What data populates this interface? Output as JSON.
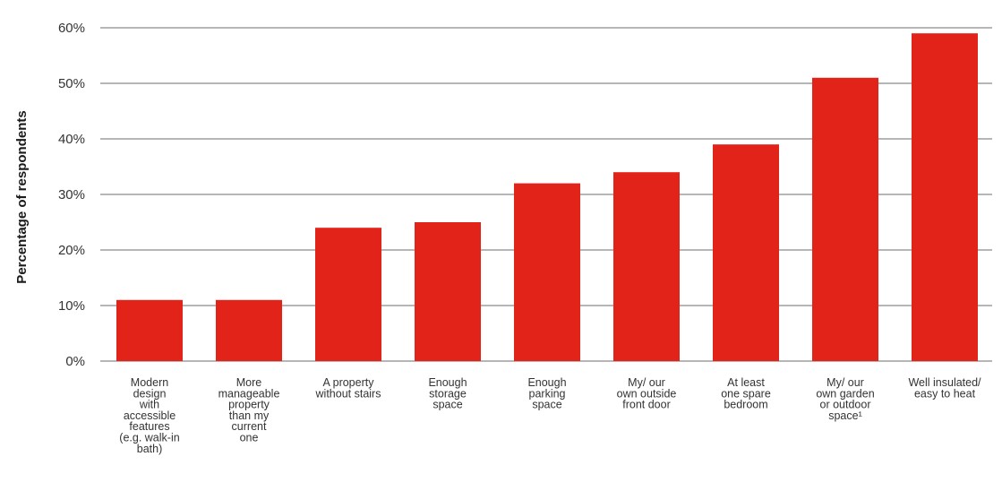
{
  "chart_data": {
    "type": "bar",
    "title": "",
    "xlabel": "",
    "ylabel": "Percentage of respondents",
    "ylim": [
      0,
      60
    ],
    "y_ticks": [
      0,
      10,
      20,
      30,
      40,
      50,
      60
    ],
    "y_tick_labels": [
      "0%",
      "10%",
      "20%",
      "30%",
      "40%",
      "50%",
      "60%"
    ],
    "grid": "horizontal",
    "legend": "none",
    "bar_color": "#e2231a",
    "grid_color": "#8a8a8a",
    "categories": [
      [
        "Modern",
        "design",
        "with",
        "accessible",
        "features",
        "(e.g. walk-in",
        "bath)"
      ],
      [
        "More",
        "manageable",
        "property",
        "than my",
        "current",
        "one"
      ],
      [
        "A property",
        "without stairs"
      ],
      [
        "Enough",
        "storage",
        "space"
      ],
      [
        "Enough",
        "parking",
        "space"
      ],
      [
        "My/ our",
        "own outside",
        "front door"
      ],
      [
        "At least",
        "one spare",
        "bedroom"
      ],
      [
        "My/ our",
        "own garden",
        "or outdoor",
        "space¹"
      ],
      [
        "Well insulated/",
        "easy to heat"
      ]
    ],
    "values": [
      11,
      11,
      24,
      25,
      32,
      34,
      39,
      51,
      59
    ]
  }
}
